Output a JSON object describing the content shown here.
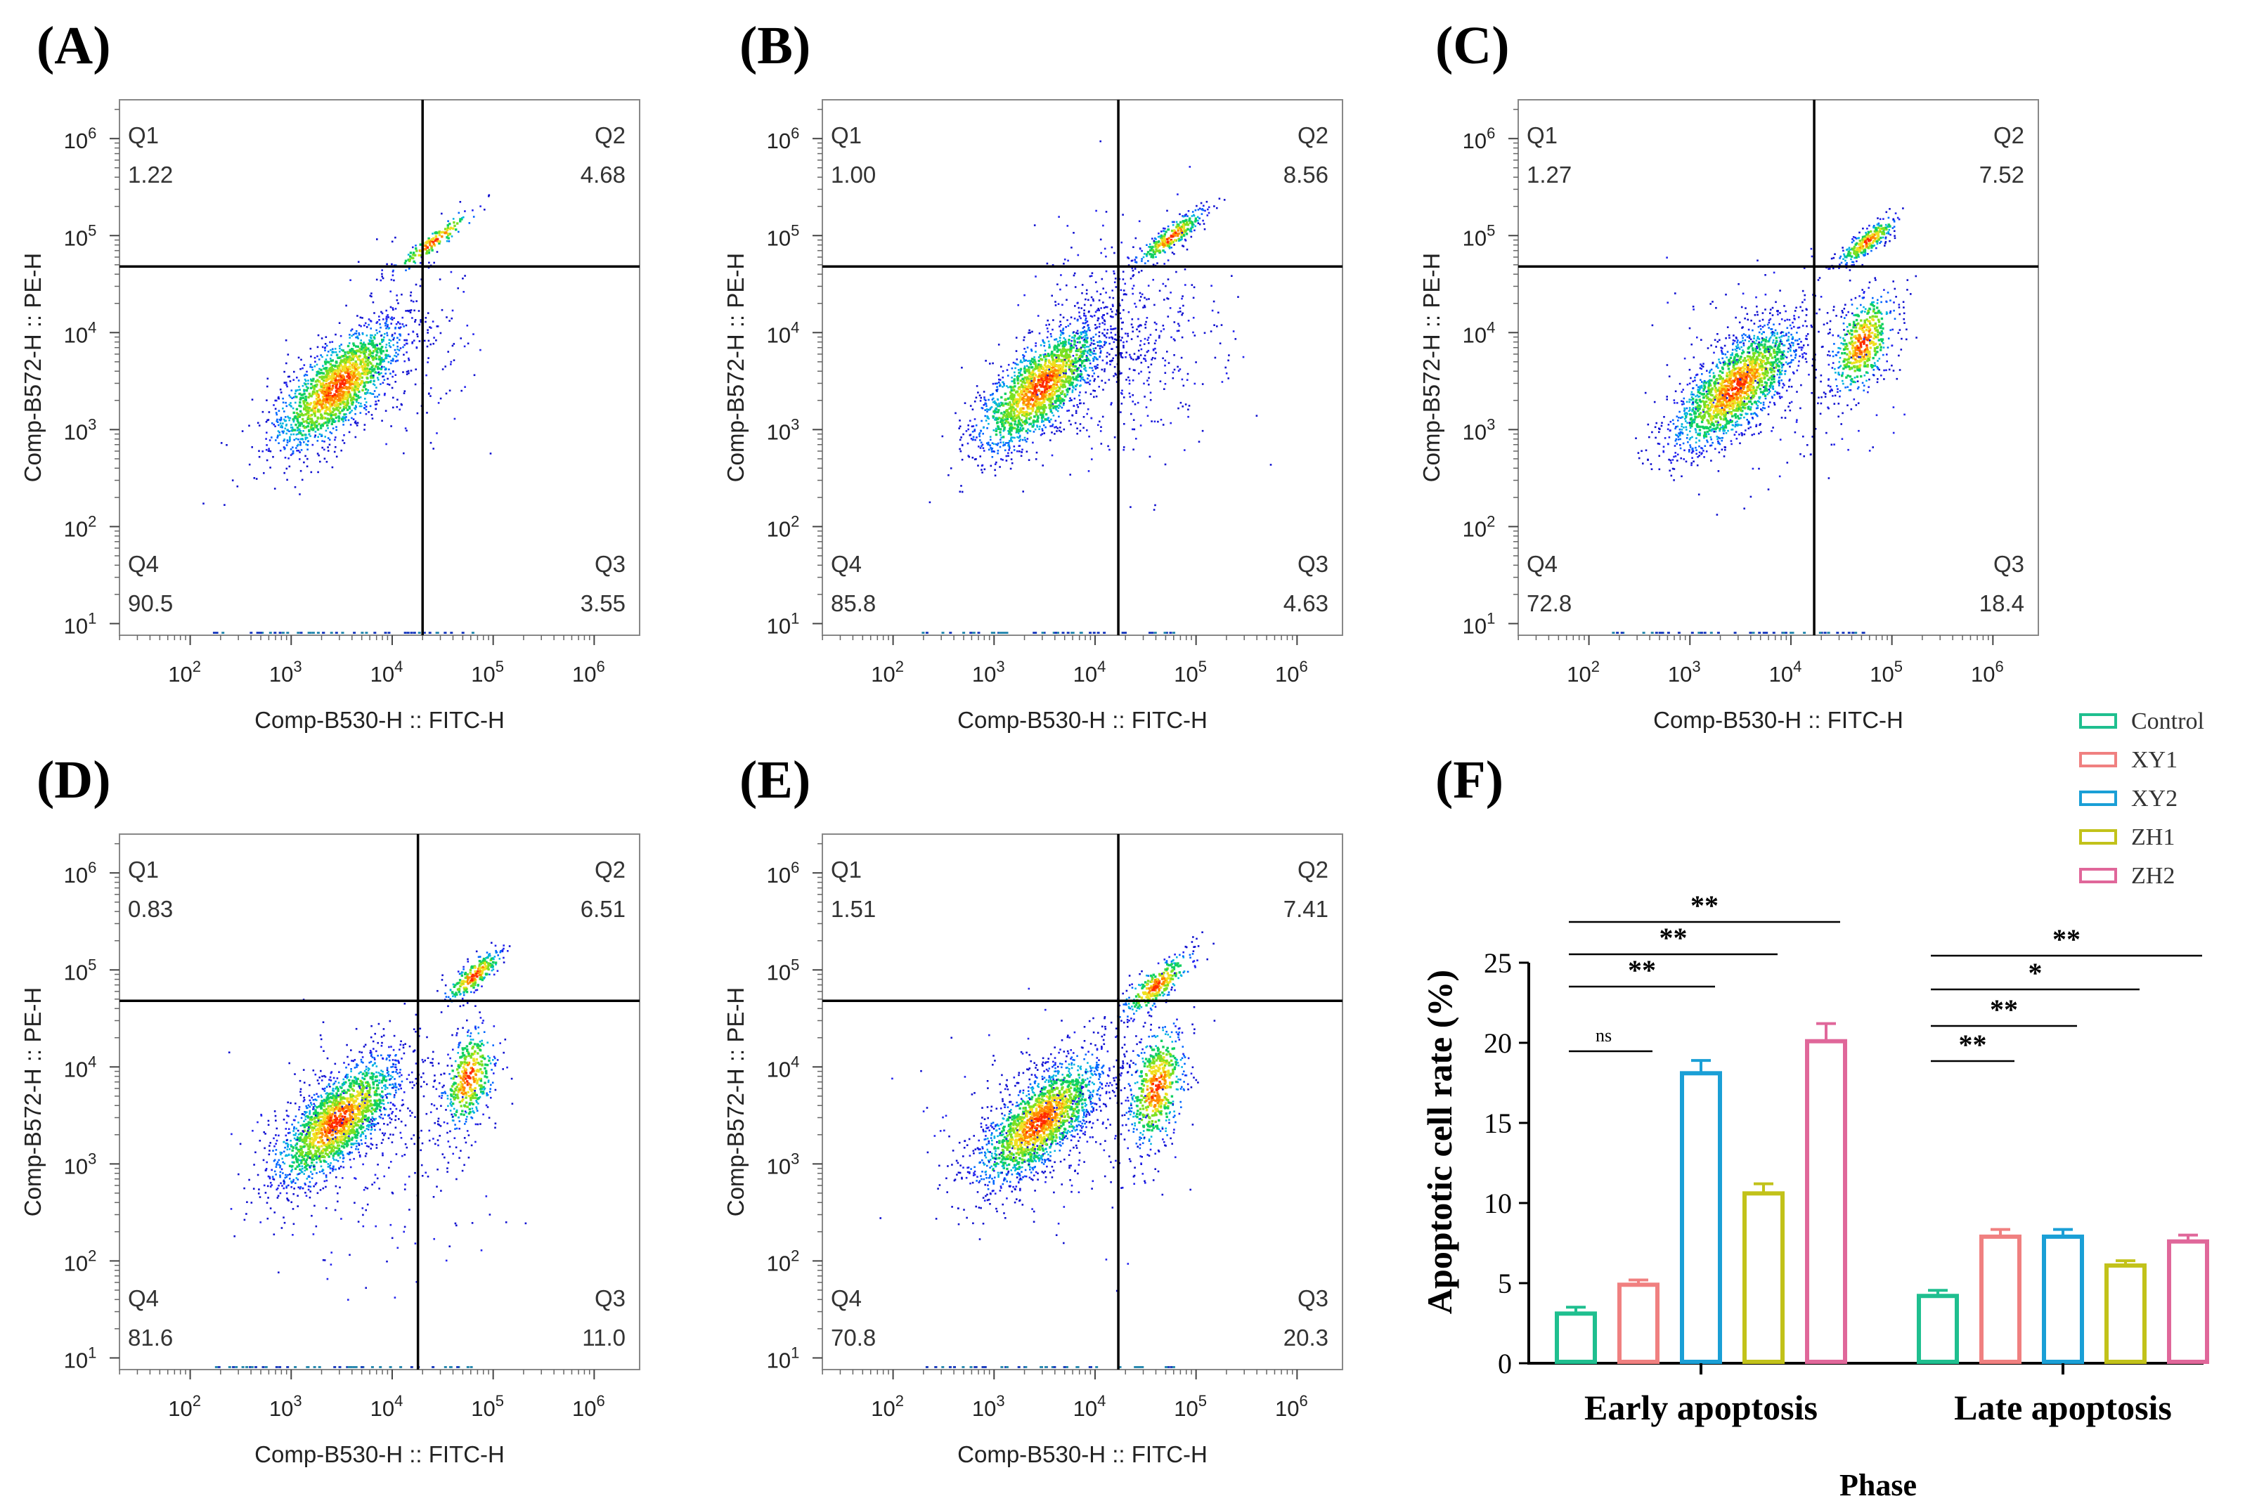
{
  "panels": [
    {
      "letter": "(A)",
      "xlabel": "Comp-B530-H :: FITC-H",
      "ylabel": "Comp-B572-H :: PE-H",
      "q1_label": "Q1",
      "q1": "1.22",
      "q2_label": "Q2",
      "q2": "4.68",
      "q3_label": "Q3",
      "q3": "3.55",
      "q4_label": "Q4",
      "q4": "90.5",
      "gate_x": 20000,
      "gate_y": 48000
    },
    {
      "letter": "(B)",
      "xlabel": "Comp-B530-H :: FITC-H",
      "ylabel": "Comp-B572-H :: PE-H",
      "q1_label": "Q1",
      "q1": "1.00",
      "q2_label": "Q2",
      "q2": "8.56",
      "q3_label": "Q3",
      "q3": "4.63",
      "q4_label": "Q4",
      "q4": "85.8",
      "gate_x": 17000,
      "gate_y": 48000
    },
    {
      "letter": "(C)",
      "xlabel": "Comp-B530-H :: FITC-H",
      "ylabel": "Comp-B572-H :: PE-H",
      "q1_label": "Q1",
      "q1": "1.27",
      "q2_label": "Q2",
      "q2": "7.52",
      "q3_label": "Q3",
      "q3": "18.4",
      "q4_label": "Q4",
      "q4": "72.8",
      "gate_x": 17000,
      "gate_y": 48000
    },
    {
      "letter": "(D)",
      "xlabel": "Comp-B530-H :: FITC-H",
      "ylabel": "Comp-B572-H :: PE-H",
      "q1_label": "Q1",
      "q1": "0.83",
      "q2_label": "Q2",
      "q2": "6.51",
      "q3_label": "Q3",
      "q3": "11.0",
      "q4_label": "Q4",
      "q4": "81.6",
      "gate_x": 18000,
      "gate_y": 48000
    },
    {
      "letter": "(E)",
      "xlabel": "Comp-B530-H :: FITC-H",
      "ylabel": "Comp-B572-H :: PE-H",
      "q1_label": "Q1",
      "q1": "1.51",
      "q2_label": "Q2",
      "q2": "7.41",
      "q3_label": "Q3",
      "q3": "20.3",
      "q4_label": "Q4",
      "q4": "70.8",
      "gate_x": 17000,
      "gate_y": 48000
    }
  ],
  "flow_axis": {
    "x_ticks": [
      {
        "base": "10",
        "exp": "2"
      },
      {
        "base": "10",
        "exp": "3"
      },
      {
        "base": "10",
        "exp": "4"
      },
      {
        "base": "10",
        "exp": "5"
      },
      {
        "base": "10",
        "exp": "6"
      }
    ],
    "y_ticks": [
      {
        "base": "10",
        "exp": "1"
      },
      {
        "base": "10",
        "exp": "2"
      },
      {
        "base": "10",
        "exp": "3"
      },
      {
        "base": "10",
        "exp": "4"
      },
      {
        "base": "10",
        "exp": "5"
      },
      {
        "base": "10",
        "exp": "6"
      }
    ]
  },
  "chart_data": {
    "type": "bar",
    "panel_letter": "(F)",
    "title": "",
    "xlabel": "Phase",
    "ylabel": "Apoptotic cell rate (%)",
    "ylim": [
      0,
      25
    ],
    "yticks": [
      "0",
      "5",
      "10",
      "15",
      "20",
      "25"
    ],
    "categories": [
      "Early apoptosis",
      "Late apoptosis"
    ],
    "series": [
      {
        "name": "Control",
        "color": "#1fbf8f",
        "values": [
          3.1,
          4.2
        ],
        "errors": [
          0.4,
          0.35
        ]
      },
      {
        "name": "XY1",
        "color": "#f08080",
        "values": [
          4.9,
          7.9
        ],
        "errors": [
          0.3,
          0.45
        ]
      },
      {
        "name": "XY2",
        "color": "#1a9fd6",
        "values": [
          18.1,
          7.9
        ],
        "errors": [
          0.8,
          0.45
        ]
      },
      {
        "name": "ZH1",
        "color": "#c2c21a",
        "values": [
          10.6,
          6.1
        ],
        "errors": [
          0.6,
          0.3
        ]
      },
      {
        "name": "ZH2",
        "color": "#e0679a",
        "values": [
          20.1,
          7.6
        ],
        "errors": [
          1.1,
          0.4
        ]
      }
    ],
    "significance": {
      "early": [
        {
          "label": "ns",
          "compare": "XY1"
        },
        {
          "label": "**",
          "compare": "XY2"
        },
        {
          "label": "**",
          "compare": "ZH1"
        },
        {
          "label": "**",
          "compare": "ZH2"
        }
      ],
      "late": [
        {
          "label": "**",
          "compare": "XY1"
        },
        {
          "label": "**",
          "compare": "XY2"
        },
        {
          "label": "*",
          "compare": "ZH1"
        },
        {
          "label": "**",
          "compare": "ZH2"
        }
      ]
    },
    "legend_position": "top-right"
  }
}
